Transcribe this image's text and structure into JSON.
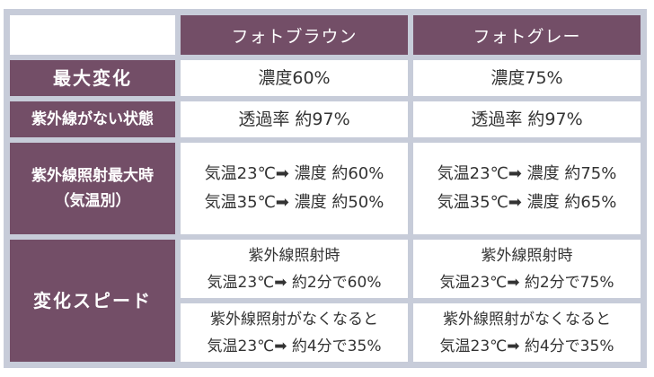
{
  "columns": {
    "corner": "",
    "photo_brown": "フォトブラウン",
    "photo_gray": "フォトグレー"
  },
  "rows": {
    "max_change": {
      "label": "最大変化",
      "photo_brown": "濃度60%",
      "photo_gray": "濃度75%"
    },
    "no_uv": {
      "label": "紫外線がない状態",
      "photo_brown": "透過率 約97%",
      "photo_gray": "透過率 約97%"
    },
    "max_uv": {
      "label_line1": "紫外線照射最大時",
      "label_line2": "（気温別）",
      "photo_brown": [
        "気温23℃➡ 濃度 約60%",
        "気温35℃➡ 濃度 約50%"
      ],
      "photo_gray": [
        "気温23℃➡ 濃度 約75%",
        "気温35℃➡ 濃度 約65%"
      ]
    },
    "speed": {
      "label": "変化スピード",
      "irradiated": {
        "photo_brown": [
          "紫外線照射時",
          "気温23℃➡ 約2分で60%"
        ],
        "photo_gray": [
          "紫外線照射時",
          "気温23℃➡ 約2分で75%"
        ]
      },
      "removed": {
        "photo_brown": [
          "紫外線照射がなくなると",
          "気温23℃➡ 約4分で35%"
        ],
        "photo_gray": [
          "紫外線照射がなくなると",
          "気温23℃➡ 約4分で35%"
        ]
      }
    }
  },
  "colors": {
    "header_bg": "#734e67",
    "grid": "#c7ccd9",
    "cell_bg": "#ffffff",
    "text": "#333333"
  }
}
